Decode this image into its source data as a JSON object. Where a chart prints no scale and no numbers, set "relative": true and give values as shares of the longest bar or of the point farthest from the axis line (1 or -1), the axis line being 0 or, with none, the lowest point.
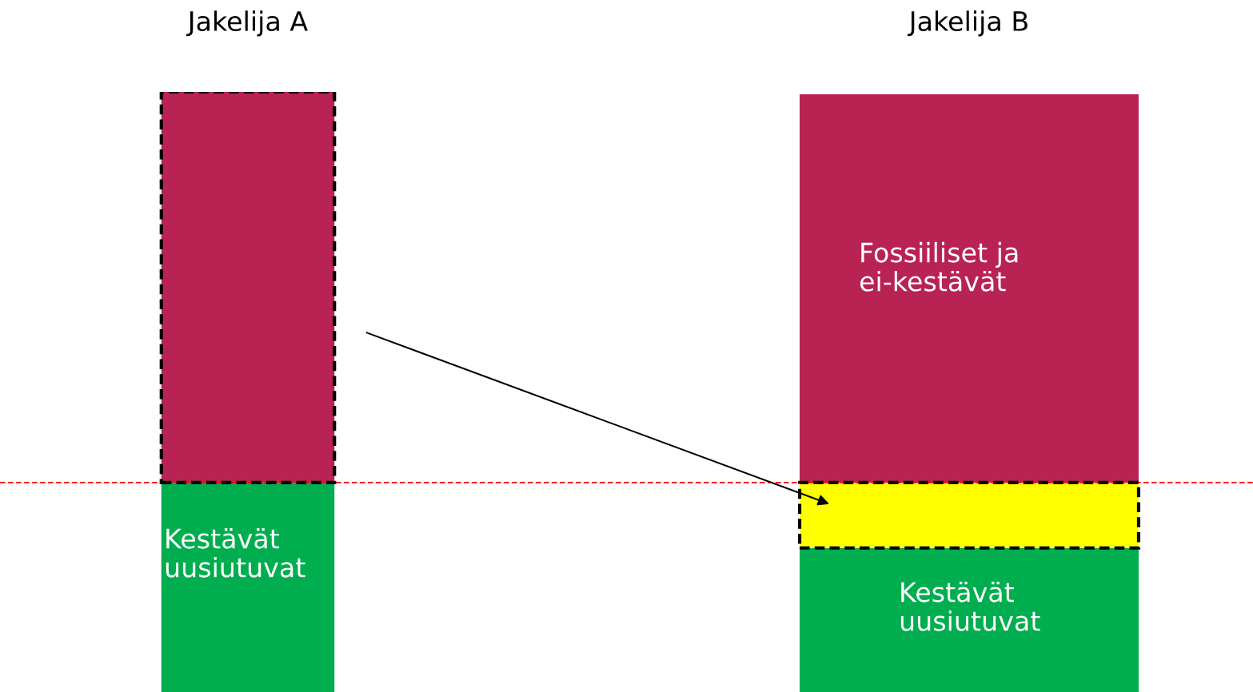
{
  "chart_data": {
    "type": "bar",
    "stacked": true,
    "relative": true,
    "categories": [
      "Jakelija A",
      "Jakelija B"
    ],
    "series": [
      {
        "color": "#00ae4f",
        "values": [
          0.349,
          0.24
        ]
      },
      {
        "color": "#ffff00",
        "values": [
          null,
          0.109
        ]
      },
      {
        "color": "#b92354",
        "values": [
          0.651,
          0.647
        ]
      }
    ],
    "ref_lines": [
      {
        "axis": "y",
        "value": 0.349,
        "color": "#ff0000",
        "line_style": "dashed"
      }
    ],
    "annotations": [
      "Kestävät\nuusiutuvat",
      "Kestävät\nuusiutuvat",
      "Fossiiliset ja\nei-kestävät"
    ],
    "grid": false,
    "legend": false
  }
}
